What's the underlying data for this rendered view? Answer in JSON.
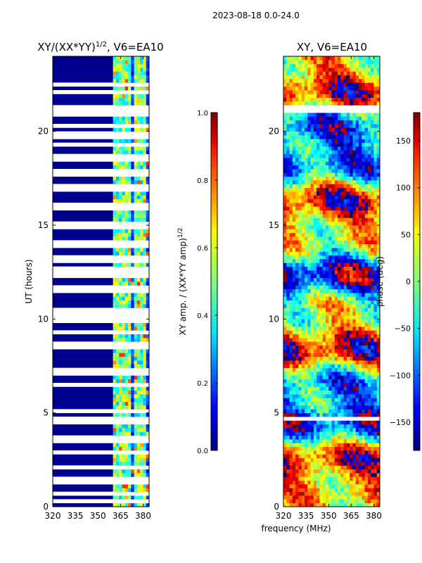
{
  "suptitle": "2023-08-18 0.0-24.0",
  "shared_xlabel": "frequency (MHz)",
  "chart_data": [
    {
      "type": "heatmap",
      "title_main": "XY/(XX*YY)",
      "title_sup": "1/2",
      "title_tail": ", V6=EA10",
      "xlabel": "",
      "ylabel": "UT (hours)",
      "xlim": [
        320,
        384
      ],
      "ylim": [
        0,
        24
      ],
      "xticks": [
        320,
        335,
        350,
        365,
        380
      ],
      "yticks": [
        0,
        5,
        10,
        15,
        20
      ],
      "colorbar": {
        "label": "XY amp. / (XX*YY amp)",
        "label_sup": "1/2",
        "range": [
          0.0,
          1.0
        ],
        "ticks": [
          "0.0",
          "0.2",
          "0.4",
          "0.6",
          "0.8",
          "1.0"
        ],
        "tick_values": [
          0.0,
          0.2,
          0.4,
          0.6,
          0.8,
          1.0
        ],
        "colormap": "jet"
      },
      "blank_rows_hours": [
        0.35,
        0.65,
        1.4,
        2.1,
        2.85,
        3.5,
        3.7,
        4.6,
        5.1,
        6.5,
        7.2,
        8.6,
        9.3,
        10.0,
        10.4,
        11.6,
        12.4,
        12.6,
        13.2,
        14.0,
        15.0,
        16.0,
        17.0,
        17.8,
        18.6,
        19.3,
        19.8,
        20.3,
        20.9,
        22.1,
        22.5
      ],
      "blank_band_hours": [
        [
          4.6,
          4.85
        ],
        [
          20.95,
          21.45
        ]
      ],
      "active_band_mhz": [
        360,
        384
      ],
      "active_channel_mhz": [
        362,
        366,
        370,
        375,
        378,
        381
      ]
    },
    {
      "type": "heatmap",
      "title_main": "XY, V6=EA10",
      "xlabel": "frequency (MHz)",
      "ylabel": "",
      "xlim": [
        320,
        384
      ],
      "ylim": [
        0,
        24
      ],
      "xticks": [
        320,
        335,
        350,
        365,
        380
      ],
      "yticks": [
        0,
        5,
        10,
        15,
        20
      ],
      "colorbar": {
        "label": "phase (deg)",
        "range": [
          -180,
          180
        ],
        "ticks": [
          "−150",
          "−100",
          "−50",
          "0",
          "50",
          "100",
          "150"
        ],
        "tick_values": [
          -150,
          -100,
          -50,
          0,
          50,
          100,
          150
        ],
        "colormap": "jet"
      },
      "blank_band_hours": [
        [
          4.6,
          4.85
        ],
        [
          20.95,
          21.45
        ]
      ]
    }
  ]
}
